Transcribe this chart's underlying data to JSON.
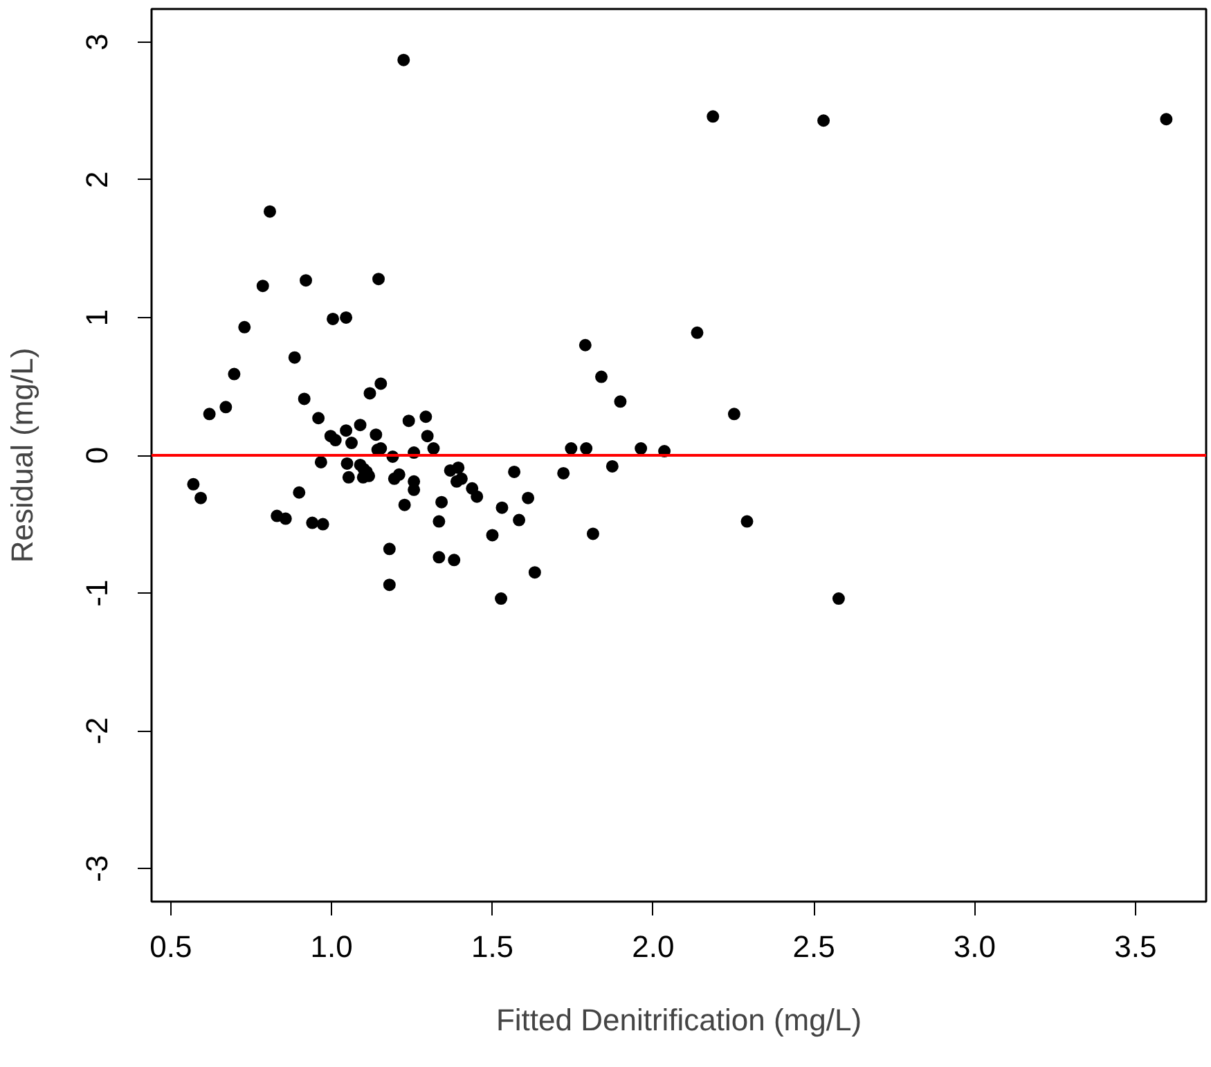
{
  "chart_data": {
    "type": "scatter",
    "xlabel": "Fitted Denitrification (mg/L)",
    "ylabel": "Residual (mg/L)",
    "xlim": [
      0.44,
      3.72
    ],
    "ylim": [
      -3.24,
      3.24
    ],
    "xticks": [
      {
        "value": 0.5,
        "label": "0.5"
      },
      {
        "value": 1,
        "label": "1.0"
      },
      {
        "value": 1.5,
        "label": "1.5"
      },
      {
        "value": 2,
        "label": "2.0"
      },
      {
        "value": 2.5,
        "label": "2.5"
      },
      {
        "value": 3,
        "label": "3.0"
      },
      {
        "value": 3.5,
        "label": "3.5"
      }
    ],
    "yticks": [
      -3,
      -2,
      -1,
      0,
      1,
      2,
      3
    ],
    "grid": false,
    "marker": "circle",
    "ref_lines": [
      {
        "axis": "y",
        "value": 0,
        "color": "#ff0000"
      }
    ],
    "series": [
      {
        "color": "#000000",
        "x": [
          0.57,
          0.593,
          0.62,
          0.671,
          0.697,
          0.729,
          0.786,
          0.808,
          0.83,
          0.857,
          0.885,
          0.899,
          0.915,
          0.92,
          0.94,
          0.959,
          0.967,
          0.973,
          0.997,
          1.004,
          1.012,
          1.045,
          1.045,
          1.048,
          1.053,
          1.062,
          1.089,
          1.089,
          1.098,
          1.1,
          1.109,
          1.116,
          1.119,
          1.138,
          1.143,
          1.146,
          1.153,
          1.153,
          1.18,
          1.18,
          1.19,
          1.195,
          1.21,
          1.224,
          1.227,
          1.24,
          1.256,
          1.256,
          1.256,
          1.293,
          1.298,
          1.317,
          1.334,
          1.334,
          1.342,
          1.369,
          1.381,
          1.389,
          1.394,
          1.404,
          1.437,
          1.452,
          1.5,
          1.527,
          1.53,
          1.568,
          1.583,
          1.611,
          1.632,
          1.721,
          1.745,
          1.789,
          1.792,
          1.813,
          1.839,
          1.873,
          1.898,
          1.962,
          2.035,
          2.137,
          2.186,
          2.252,
          2.292,
          2.53,
          2.577,
          3.596
        ],
        "values": [
          -0.21,
          -0.31,
          0.3,
          0.35,
          0.59,
          0.93,
          1.23,
          1.77,
          -0.44,
          -0.46,
          0.71,
          -0.27,
          0.41,
          1.27,
          -0.49,
          0.27,
          -0.05,
          -0.5,
          0.14,
          0.99,
          0.11,
          1.0,
          0.18,
          -0.06,
          -0.16,
          0.09,
          0.22,
          -0.07,
          -0.16,
          -0.1,
          -0.12,
          -0.15,
          0.45,
          0.15,
          0.04,
          1.28,
          0.52,
          0.05,
          -0.68,
          -0.94,
          -0.01,
          -0.17,
          -0.14,
          2.87,
          -0.36,
          0.25,
          0.02,
          -0.19,
          -0.25,
          0.28,
          0.14,
          0.05,
          -0.48,
          -0.74,
          -0.34,
          -0.11,
          -0.76,
          -0.19,
          -0.09,
          -0.17,
          -0.24,
          -0.3,
          -0.58,
          -1.04,
          -0.38,
          -0.12,
          -0.47,
          -0.31,
          -0.85,
          -0.13,
          0.05,
          0.8,
          0.05,
          -0.57,
          0.57,
          -0.08,
          0.39,
          0.05,
          0.03,
          0.89,
          2.46,
          0.3,
          -0.48,
          2.43,
          -1.04,
          2.44
        ]
      }
    ]
  }
}
